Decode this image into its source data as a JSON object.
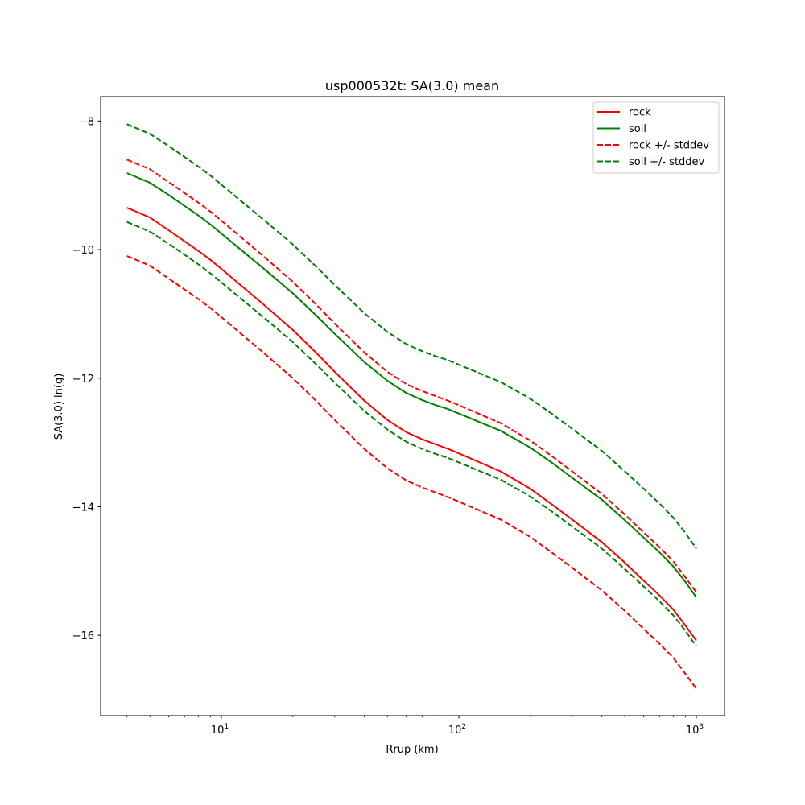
{
  "chart_data": {
    "type": "line",
    "title": "usp000532t: SA(3.0) mean",
    "xlabel": "Rrup (km)",
    "ylabel": "SA(3.0) ln(g)",
    "xscale": "log",
    "xlim": [
      3.1,
      1314
    ],
    "ylim": [
      -17.25,
      -7.62
    ],
    "grid": false,
    "legend_position": "top-right",
    "x_ticks": [
      {
        "value": 10,
        "base": "10",
        "exp": "1"
      },
      {
        "value": 100,
        "base": "10",
        "exp": "2"
      },
      {
        "value": 1000,
        "base": "10",
        "exp": "3"
      }
    ],
    "y_ticks": [
      {
        "value": -8,
        "label": "−8"
      },
      {
        "value": -10,
        "label": "−10"
      },
      {
        "value": -12,
        "label": "−12"
      },
      {
        "value": -14,
        "label": "−14"
      },
      {
        "value": -16,
        "label": "−16"
      }
    ],
    "x": [
      4,
      5,
      6,
      7,
      8,
      9,
      10,
      15,
      20,
      25,
      30,
      40,
      50,
      60,
      70,
      80,
      90,
      100,
      150,
      200,
      250,
      300,
      400,
      500,
      600,
      700,
      800,
      900,
      1000
    ],
    "series": [
      {
        "name": "rock",
        "color": "#ff0000",
        "dash": false,
        "stddev": 0.75,
        "values": [
          -9.35,
          -9.5,
          -9.7,
          -9.87,
          -10.02,
          -10.16,
          -10.3,
          -10.85,
          -11.25,
          -11.6,
          -11.9,
          -12.35,
          -12.65,
          -12.84,
          -12.95,
          -13.03,
          -13.1,
          -13.17,
          -13.45,
          -13.72,
          -13.98,
          -14.2,
          -14.55,
          -14.87,
          -15.15,
          -15.38,
          -15.6,
          -15.85,
          -16.08
        ]
      },
      {
        "name": "soil",
        "color": "#008000",
        "dash": false,
        "stddev": 0.76,
        "values": [
          -8.81,
          -8.96,
          -9.15,
          -9.32,
          -9.47,
          -9.61,
          -9.75,
          -10.29,
          -10.68,
          -11.02,
          -11.31,
          -11.75,
          -12.04,
          -12.23,
          -12.34,
          -12.42,
          -12.48,
          -12.55,
          -12.82,
          -13.08,
          -13.33,
          -13.55,
          -13.89,
          -14.21,
          -14.48,
          -14.71,
          -14.93,
          -15.17,
          -15.41
        ]
      }
    ],
    "legend": [
      {
        "label": "rock",
        "color": "#ff0000",
        "dash": false
      },
      {
        "label": "soil",
        "color": "#008000",
        "dash": false
      },
      {
        "label": "rock +/- stddev",
        "color": "#ff0000",
        "dash": true
      },
      {
        "label": "soil +/- stddev",
        "color": "#008000",
        "dash": true
      }
    ]
  }
}
